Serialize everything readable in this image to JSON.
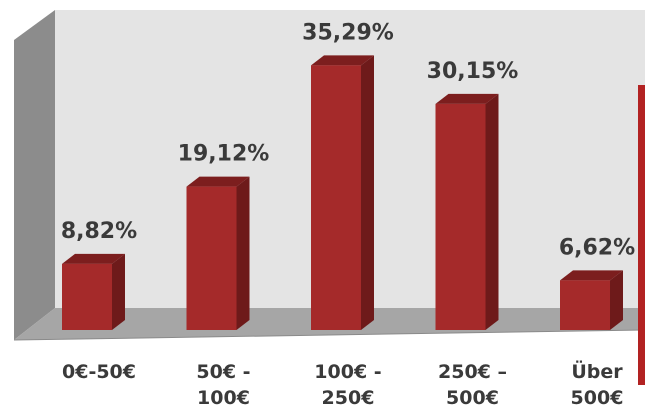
{
  "chart_data": {
    "type": "bar",
    "title": "",
    "xlabel": "",
    "ylabel": "",
    "categories": [
      [
        "0€-50€"
      ],
      [
        "50€ -",
        "100€"
      ],
      [
        "100€ -",
        "250€"
      ],
      [
        "250€ –",
        "500€"
      ],
      [
        "Über",
        "500€"
      ]
    ],
    "values": [
      8.82,
      19.12,
      35.29,
      30.15,
      6.62
    ],
    "value_labels": [
      "8,82%",
      "19,12%",
      "35,29%",
      "30,15%",
      "6,62%"
    ],
    "unit": "%",
    "ylim": [
      0,
      40
    ],
    "grid": false,
    "legend": "none",
    "style": "3d-column",
    "colors": {
      "bar_front": "#a52a2a",
      "bar_side": "#6e1a1a",
      "bar_top": "#7c1e1e",
      "wall": "#e4e4e4",
      "wall_side": "#8c8c8c",
      "floor": "#a6a6a6",
      "floor_edge": "#8a8a8a",
      "accent_line": "#b22222"
    }
  }
}
